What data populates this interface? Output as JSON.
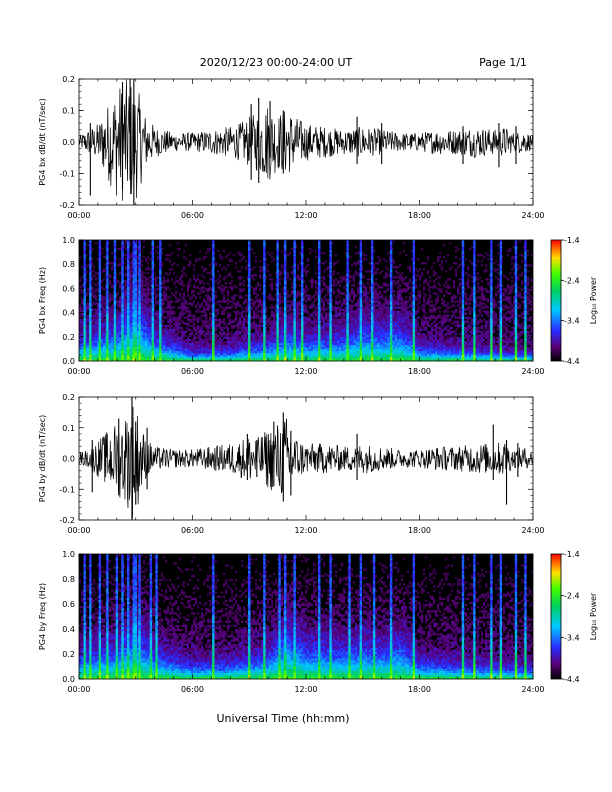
{
  "header": {
    "title": "2020/12/23  00:00-24:00 UT",
    "page": "Page 1/1"
  },
  "footer": {
    "xlabel": "Universal Time (hh:mm)"
  },
  "chart_data": [
    {
      "type": "line",
      "panel": "bx_waveform",
      "ylabel": "PG4 bx dB/dt (nT/sec)",
      "xlim": [
        0,
        24
      ],
      "ylim": [
        -0.2,
        0.2
      ],
      "x_tick_labels": [
        "00:00",
        "06:00",
        "12:00",
        "18:00",
        "24:00"
      ],
      "y_tick_labels": [
        "0.2",
        "0.1",
        "0.0",
        "-0.1",
        "-0.2"
      ],
      "y_tick_values": [
        0.2,
        0.1,
        0.0,
        -0.1,
        -0.2
      ],
      "series": [
        {
          "x": [
            0,
            0.5,
            1,
            1.5,
            2,
            2.5,
            2.8,
            3,
            3.5,
            4,
            5,
            6,
            7,
            8,
            8.5,
            9,
            9.5,
            10,
            10.5,
            11,
            11.5,
            12,
            13,
            14,
            15,
            16,
            17,
            18,
            19,
            20,
            21,
            22,
            22.5,
            23,
            23.5,
            24
          ],
          "amplitude": [
            0.02,
            0.04,
            0.06,
            0.12,
            0.18,
            0.2,
            0.2,
            0.19,
            0.09,
            0.05,
            0.03,
            0.03,
            0.04,
            0.05,
            0.06,
            0.08,
            0.1,
            0.13,
            0.09,
            0.11,
            0.08,
            0.06,
            0.05,
            0.04,
            0.05,
            0.04,
            0.03,
            0.03,
            0.04,
            0.04,
            0.05,
            0.04,
            0.05,
            0.03,
            0.04,
            0.02
          ]
        }
      ],
      "spikes": [
        {
          "x": 0.6,
          "min": -0.17,
          "max": 0.06
        },
        {
          "x": 2.3,
          "min": -0.15,
          "max": 0.19
        },
        {
          "x": 2.7,
          "min": -0.12,
          "max": 0.2
        },
        {
          "x": 2.9,
          "min": -0.2,
          "max": 0.2
        },
        {
          "x": 9.1,
          "min": -0.12,
          "max": 0.12
        },
        {
          "x": 9.5,
          "min": -0.13,
          "max": 0.14
        },
        {
          "x": 10.1,
          "min": -0.05,
          "max": 0.13
        },
        {
          "x": 10.8,
          "min": -0.1,
          "max": 0.1
        },
        {
          "x": 14.7,
          "min": -0.07,
          "max": 0.08
        },
        {
          "x": 16.0,
          "min": -0.07,
          "max": 0.06
        },
        {
          "x": 20.3,
          "min": -0.07,
          "max": 0.05
        },
        {
          "x": 22.2,
          "min": -0.08,
          "max": 0.06
        },
        {
          "x": 23.1,
          "min": -0.07,
          "max": 0.05
        }
      ]
    },
    {
      "type": "heatmap",
      "panel": "bx_spectrogram",
      "ylabel": "PG4 bx Freq (Hz)",
      "xlim": [
        0,
        24
      ],
      "ylim": [
        0,
        1.0
      ],
      "x_tick_labels": [
        "00:00",
        "06:00",
        "12:00",
        "18:00",
        "24:00"
      ],
      "y_tick_labels": [
        "1.0",
        "0.8",
        "0.6",
        "0.4",
        "0.2",
        "0.0"
      ],
      "y_tick_values": [
        1.0,
        0.8,
        0.6,
        0.4,
        0.2,
        0.0
      ],
      "colorbar": {
        "label": "Log₁₀ Power",
        "range": [
          -4.4,
          -1.4
        ],
        "tick_labels": [
          "-1.4",
          "-2.4",
          "-3.4",
          "-4.4"
        ],
        "tick_values": [
          -1.4,
          -2.4,
          -3.4,
          -4.4
        ]
      },
      "columns_hour": [
        0.3,
        0.6,
        1.1,
        1.5,
        1.9,
        2.3,
        2.6,
        2.9,
        3.0,
        3.2,
        3.9,
        4.3,
        7.1,
        9.0,
        9.8,
        10.5,
        10.9,
        11.4,
        11.8,
        12.7,
        13.3,
        14.2,
        14.9,
        15.5,
        16.5,
        17.7,
        20.3,
        20.9,
        21.8,
        22.3,
        23.1,
        23.6
      ],
      "band_envelope": [
        {
          "x": 0,
          "f": 0.12
        },
        {
          "x": 2,
          "f": 0.18
        },
        {
          "x": 3,
          "f": 0.35
        },
        {
          "x": 4,
          "f": 0.14
        },
        {
          "x": 6,
          "f": 0.05
        },
        {
          "x": 8,
          "f": 0.06
        },
        {
          "x": 10,
          "f": 0.1
        },
        {
          "x": 11,
          "f": 0.16
        },
        {
          "x": 12,
          "f": 0.12
        },
        {
          "x": 14,
          "f": 0.14
        },
        {
          "x": 15,
          "f": 0.2
        },
        {
          "x": 16,
          "f": 0.18
        },
        {
          "x": 17,
          "f": 0.2
        },
        {
          "x": 18,
          "f": 0.08
        },
        {
          "x": 20,
          "f": 0.06
        },
        {
          "x": 22,
          "f": 0.05
        },
        {
          "x": 24,
          "f": 0.04
        }
      ]
    },
    {
      "type": "line",
      "panel": "by_waveform",
      "ylabel": "PG4 by dB/dt (nT/sec)",
      "xlim": [
        0,
        24
      ],
      "ylim": [
        -0.2,
        0.2
      ],
      "x_tick_labels": [
        "00:00",
        "06:00",
        "12:00",
        "18:00",
        "24:00"
      ],
      "y_tick_labels": [
        "0.2",
        "0.1",
        "0.0",
        "-0.1",
        "-0.2"
      ],
      "y_tick_values": [
        0.2,
        0.1,
        0.0,
        -0.1,
        -0.2
      ],
      "series": [
        {
          "x": [
            0,
            0.5,
            1,
            1.5,
            2,
            2.5,
            2.8,
            3,
            3.5,
            4,
            5,
            6,
            7,
            8,
            8.5,
            9,
            9.5,
            10,
            10.5,
            11,
            11.5,
            12,
            13,
            14,
            15,
            16,
            17,
            18,
            19,
            20,
            21,
            22,
            22.5,
            23,
            23.5,
            24
          ],
          "amplitude": [
            0.02,
            0.03,
            0.06,
            0.09,
            0.12,
            0.15,
            0.2,
            0.18,
            0.07,
            0.04,
            0.03,
            0.03,
            0.04,
            0.05,
            0.06,
            0.08,
            0.07,
            0.1,
            0.12,
            0.14,
            0.07,
            0.05,
            0.05,
            0.04,
            0.05,
            0.04,
            0.03,
            0.03,
            0.04,
            0.04,
            0.05,
            0.05,
            0.06,
            0.03,
            0.04,
            0.02
          ]
        }
      ],
      "spikes": [
        {
          "x": 0.7,
          "min": -0.11,
          "max": 0.06
        },
        {
          "x": 2.1,
          "min": -0.12,
          "max": 0.13
        },
        {
          "x": 2.8,
          "min": -0.2,
          "max": 0.2
        },
        {
          "x": 3.0,
          "min": -0.15,
          "max": 0.12
        },
        {
          "x": 3.6,
          "min": -0.1,
          "max": 0.1
        },
        {
          "x": 8.9,
          "min": -0.07,
          "max": 0.08
        },
        {
          "x": 9.4,
          "min": -0.06,
          "max": 0.06
        },
        {
          "x": 10.3,
          "min": -0.09,
          "max": 0.12
        },
        {
          "x": 10.8,
          "min": -0.14,
          "max": 0.15
        },
        {
          "x": 11.2,
          "min": -0.12,
          "max": 0.09
        },
        {
          "x": 14.7,
          "min": -0.07,
          "max": 0.08
        },
        {
          "x": 21.9,
          "min": -0.07,
          "max": 0.11
        },
        {
          "x": 22.6,
          "min": -0.15,
          "max": 0.06
        },
        {
          "x": 23.2,
          "min": -0.06,
          "max": 0.05
        }
      ]
    },
    {
      "type": "heatmap",
      "panel": "by_spectrogram",
      "ylabel": "PG4 by Freq (Hz)",
      "xlim": [
        0,
        24
      ],
      "ylim": [
        0,
        1.0
      ],
      "x_tick_labels": [
        "00:00",
        "06:00",
        "12:00",
        "18:00",
        "24:00"
      ],
      "y_tick_labels": [
        "1.0",
        "0.8",
        "0.6",
        "0.4",
        "0.2",
        "0.0"
      ],
      "y_tick_values": [
        1.0,
        0.8,
        0.6,
        0.4,
        0.2,
        0.0
      ],
      "colorbar": {
        "label": "Log₁₀ Power",
        "range": [
          -4.4,
          -1.4
        ],
        "tick_labels": [
          "-1.4",
          "-2.4",
          "-3.4",
          "-4.4"
        ],
        "tick_values": [
          -1.4,
          -2.4,
          -3.4,
          -4.4
        ]
      },
      "columns_hour": [
        0.3,
        0.6,
        1.1,
        1.5,
        2.0,
        2.3,
        2.6,
        2.9,
        3.0,
        3.2,
        3.8,
        4.1,
        7.1,
        9.0,
        9.8,
        10.6,
        10.9,
        11.4,
        12.7,
        13.3,
        14.3,
        14.9,
        15.6,
        16.5,
        17.7,
        20.3,
        20.9,
        21.8,
        22.3,
        23.1,
        23.6
      ],
      "band_envelope": [
        {
          "x": 0,
          "f": 0.13
        },
        {
          "x": 2,
          "f": 0.18
        },
        {
          "x": 3,
          "f": 0.3
        },
        {
          "x": 4,
          "f": 0.15
        },
        {
          "x": 6,
          "f": 0.08
        },
        {
          "x": 8,
          "f": 0.09
        },
        {
          "x": 10,
          "f": 0.14
        },
        {
          "x": 11,
          "f": 0.3
        },
        {
          "x": 12,
          "f": 0.2
        },
        {
          "x": 14,
          "f": 0.18
        },
        {
          "x": 15,
          "f": 0.2
        },
        {
          "x": 16,
          "f": 0.18
        },
        {
          "x": 17,
          "f": 0.22
        },
        {
          "x": 18,
          "f": 0.1
        },
        {
          "x": 20,
          "f": 0.08
        },
        {
          "x": 22,
          "f": 0.07
        },
        {
          "x": 24,
          "f": 0.06
        }
      ]
    }
  ]
}
